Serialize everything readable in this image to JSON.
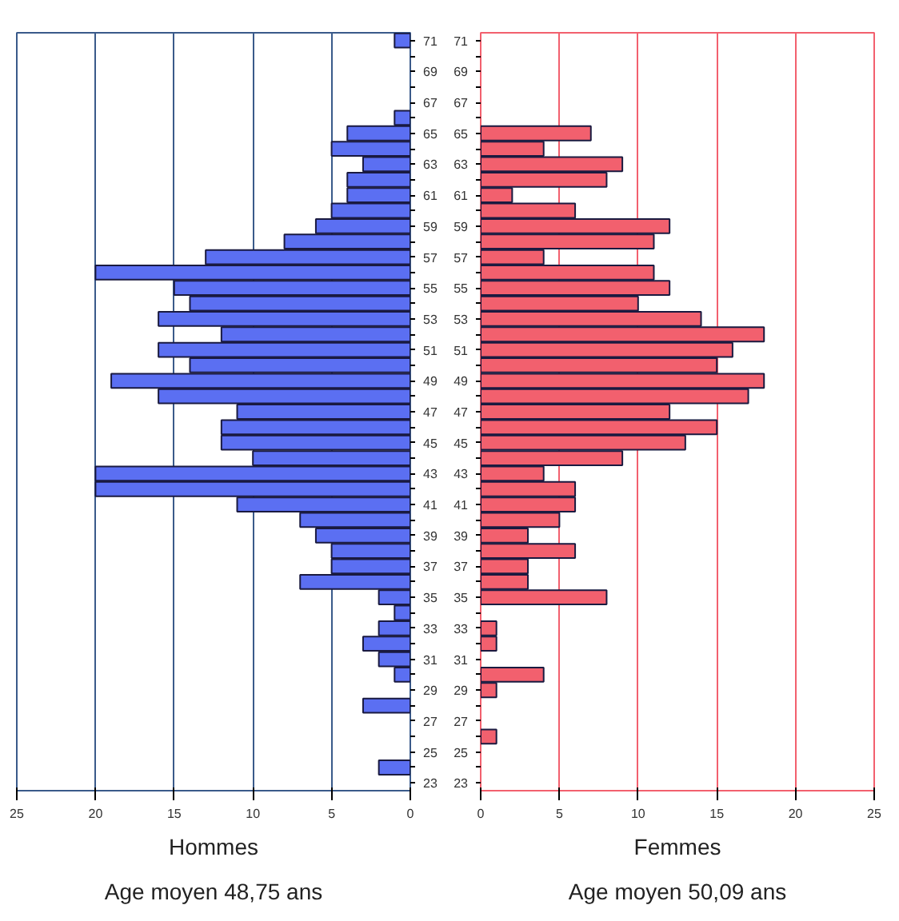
{
  "chart_data": [
    {
      "type": "bar",
      "orientation": "horizontal",
      "title": "Hommes",
      "subtitle": "Age moyen 48,75 ans",
      "categories": [
        "71",
        null,
        "69",
        null,
        "67",
        null,
        "65",
        null,
        "63",
        null,
        "61",
        null,
        "59",
        null,
        "57",
        null,
        "55",
        null,
        "53",
        null,
        "51",
        null,
        "49",
        null,
        "47",
        null,
        "45",
        null,
        "43",
        null,
        "41",
        null,
        "39",
        null,
        "37",
        null,
        "35",
        null,
        "33",
        null,
        "31",
        null,
        "29",
        null,
        "27",
        null,
        "25",
        null,
        "23"
      ],
      "values": [
        1,
        0,
        0,
        0,
        0,
        1,
        4,
        5,
        3,
        4,
        4,
        5,
        6,
        8,
        13,
        20,
        15,
        14,
        16,
        12,
        16,
        14,
        19,
        16,
        11,
        12,
        12,
        10,
        20,
        20,
        11,
        7,
        6,
        5,
        5,
        7,
        2,
        1,
        2,
        3,
        2,
        1,
        0,
        3,
        0,
        0,
        0,
        2,
        0
      ],
      "color": "#5b6ff2",
      "xlim": [
        25,
        0
      ],
      "xticks": [
        0,
        5,
        10,
        15,
        20,
        25
      ],
      "grid": "x"
    },
    {
      "type": "bar",
      "orientation": "horizontal",
      "title": "Femmes",
      "subtitle": "Age moyen 50,09 ans",
      "categories": [
        "71",
        null,
        "69",
        null,
        "67",
        null,
        "65",
        null,
        "63",
        null,
        "61",
        null,
        "59",
        null,
        "57",
        null,
        "55",
        null,
        "53",
        null,
        "51",
        null,
        "49",
        null,
        "47",
        null,
        "45",
        null,
        "43",
        null,
        "41",
        null,
        "39",
        null,
        "37",
        null,
        "35",
        null,
        "33",
        null,
        "31",
        null,
        "29",
        null,
        "27",
        null,
        "25",
        null,
        "23"
      ],
      "values": [
        0,
        0,
        0,
        0,
        0,
        0,
        7,
        4,
        9,
        8,
        2,
        6,
        12,
        11,
        4,
        11,
        12,
        10,
        14,
        18,
        16,
        15,
        18,
        17,
        12,
        15,
        13,
        9,
        4,
        6,
        6,
        5,
        3,
        6,
        3,
        3,
        8,
        0,
        1,
        1,
        0,
        4,
        1,
        0,
        0,
        1,
        0,
        0,
        0
      ],
      "color": "#f2606e",
      "xlim": [
        0,
        25
      ],
      "xticks": [
        0,
        5,
        10,
        15,
        20,
        25
      ],
      "grid": "x"
    }
  ]
}
